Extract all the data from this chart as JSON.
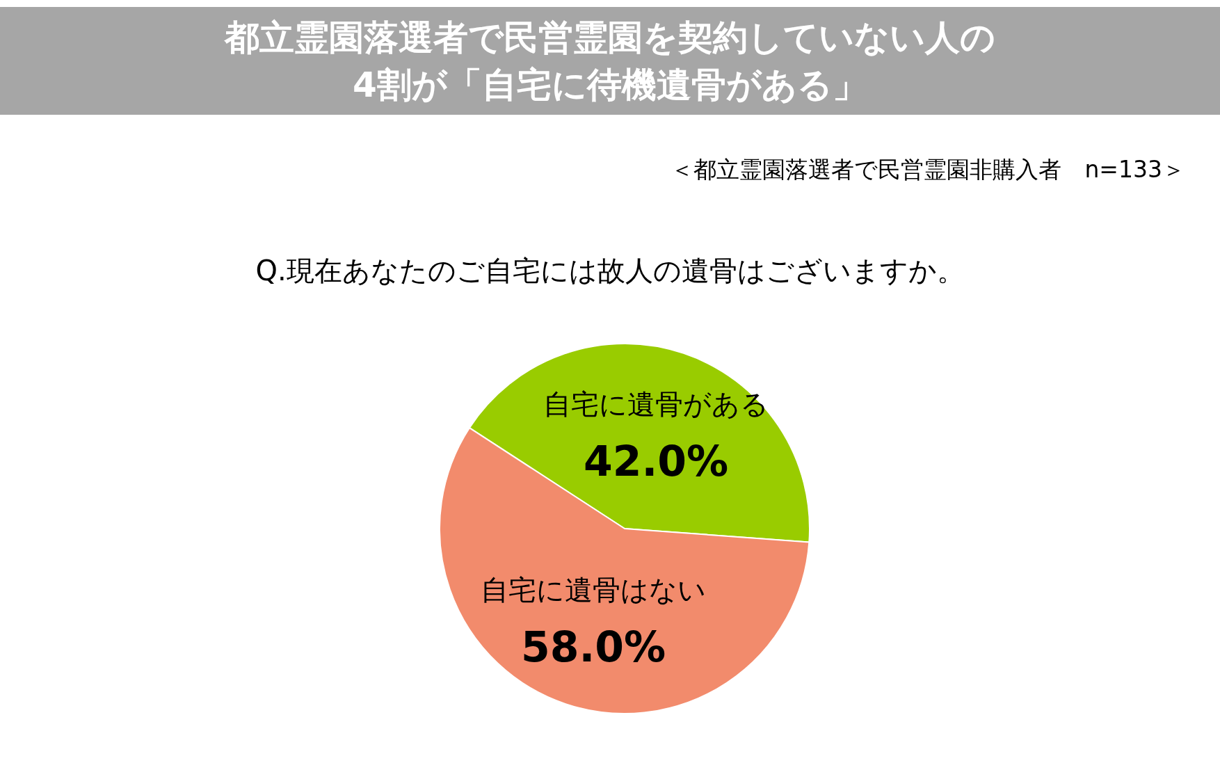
{
  "chart_data": {
    "type": "pie",
    "title": "都立霊園落選者で民営霊園を契約していない人の\n4割が「自宅に待機遺骨がある」",
    "subtitle": "Q.現在あなたのご自宅には故人の遺骨はございますか。",
    "annotations": [
      "＜都立霊園落選者で民営霊園非購入者　n=133＞"
    ],
    "categories": [
      "自宅に遺骨がある",
      "自宅に遺骨はない"
    ],
    "values": [
      42.0,
      58.0
    ],
    "colors": [
      "#99cc00",
      "#f28b6c"
    ],
    "value_labels": [
      "42.0%",
      "58.0%"
    ],
    "legend": false
  }
}
